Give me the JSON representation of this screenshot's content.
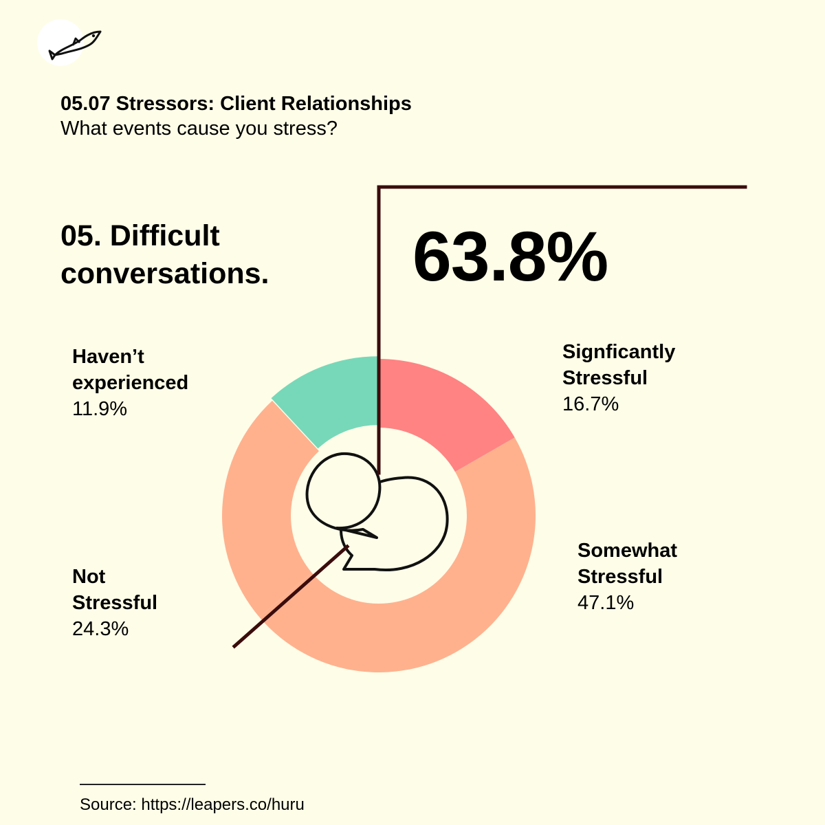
{
  "header": {
    "title": "05.07 Stressors: Client Relationships",
    "subtitle": "What events cause you stress?"
  },
  "topic": {
    "line1": "05. Difficult",
    "line2": "conversations."
  },
  "highlight": {
    "value": "63.8%"
  },
  "icons": {
    "logo": "fish-icon",
    "center": "speech-bubbles-icon"
  },
  "colors": {
    "background": "#fefde8",
    "significantly": "#ff8383",
    "somewhat": "#ffb18e",
    "not": "#ffb18e",
    "havent": "#77d8b9",
    "leader": "#3a0c0c"
  },
  "chart_data": {
    "type": "pie",
    "variant": "donut",
    "slices": [
      {
        "label_line1": "Signficantly",
        "label_line2": "Stressful",
        "value": 16.7,
        "value_text": "16.7%",
        "color": "#ff8383"
      },
      {
        "label_line1": "Somewhat",
        "label_line2": "Stressful",
        "value": 47.1,
        "value_text": "47.1%",
        "color": "#ffb18e"
      },
      {
        "label_line1": "Not",
        "label_line2": "Stressful",
        "value": 24.3,
        "value_text": "24.3%",
        "color": "#ffb18e"
      },
      {
        "label_line1": "Haven’t",
        "label_line2": "experienced",
        "value": 11.9,
        "value_text": "11.9%",
        "color": "#77d8b9"
      }
    ],
    "highlighted_total": 63.8
  },
  "footer": {
    "source": "Source: https://leapers.co/huru"
  }
}
